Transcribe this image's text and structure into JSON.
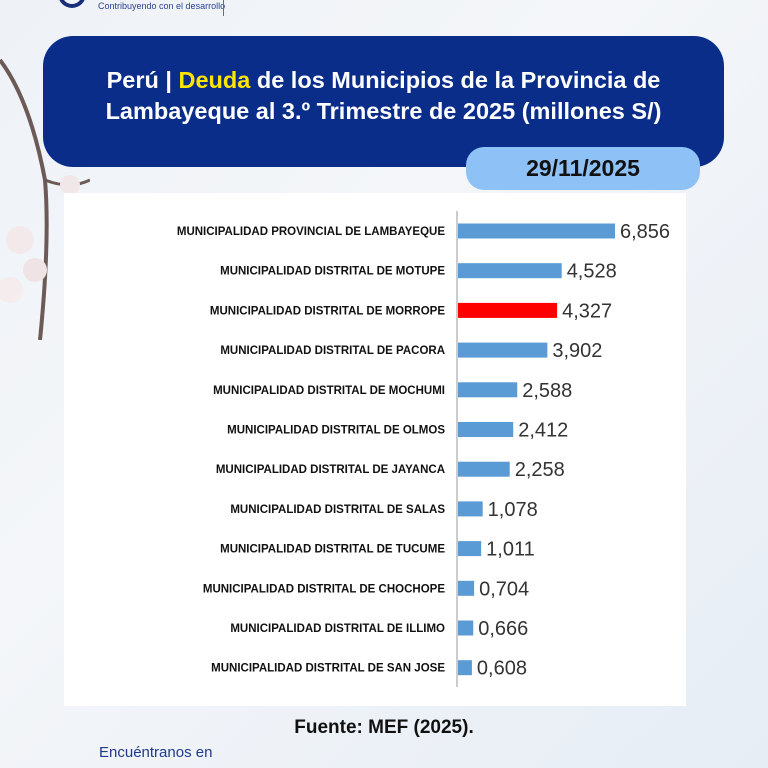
{
  "header": {
    "tagline": "Contribuyendo con el desarrollo",
    "title_prefix": "Perú | ",
    "title_highlight": "Deuda",
    "title_rest": " de los Municipios de la Provincia de Lambayeque al 3.º Trimestre de 2025 (millones S/)",
    "date": "29/11/2025"
  },
  "colors": {
    "banner": "#0a2d8a",
    "highlight_text": "#ffe600",
    "date_pill": "#8ec1f5",
    "bar": "#5b9bd5",
    "bar_highlight": "#ff0000"
  },
  "chart_data": {
    "type": "bar",
    "orientation": "horizontal",
    "categories": [
      "MUNICIPALIDAD PROVINCIAL DE LAMBAYEQUE",
      "MUNICIPALIDAD DISTRITAL DE MOTUPE",
      "MUNICIPALIDAD DISTRITAL DE MORROPE",
      "MUNICIPALIDAD DISTRITAL DE PACORA",
      "MUNICIPALIDAD DISTRITAL DE MOCHUMI",
      "MUNICIPALIDAD DISTRITAL DE OLMOS",
      "MUNICIPALIDAD DISTRITAL DE JAYANCA",
      "MUNICIPALIDAD DISTRITAL DE SALAS",
      "MUNICIPALIDAD DISTRITAL DE TUCUME",
      "MUNICIPALIDAD DISTRITAL DE CHOCHOPE",
      "MUNICIPALIDAD DISTRITAL DE ILLIMO",
      "MUNICIPALIDAD DISTRITAL DE SAN JOSE"
    ],
    "values": [
      6.856,
      4.528,
      4.327,
      3.902,
      2.588,
      2.412,
      2.258,
      1.078,
      1.011,
      0.704,
      0.666,
      0.608
    ],
    "data_labels": [
      "6,856",
      "4,528",
      "4,327",
      "3,902",
      "2,588",
      "2,412",
      "2,258",
      "1,078",
      "1,011",
      "0,704",
      "0,666",
      "0,608"
    ],
    "highlighted_index": 2,
    "xlim": [
      0,
      10
    ],
    "grid": false,
    "title": "",
    "xlabel": "",
    "ylabel": ""
  },
  "footer": {
    "source": "Fuente: MEF (2025).",
    "find_us": "Encuéntranos en"
  }
}
